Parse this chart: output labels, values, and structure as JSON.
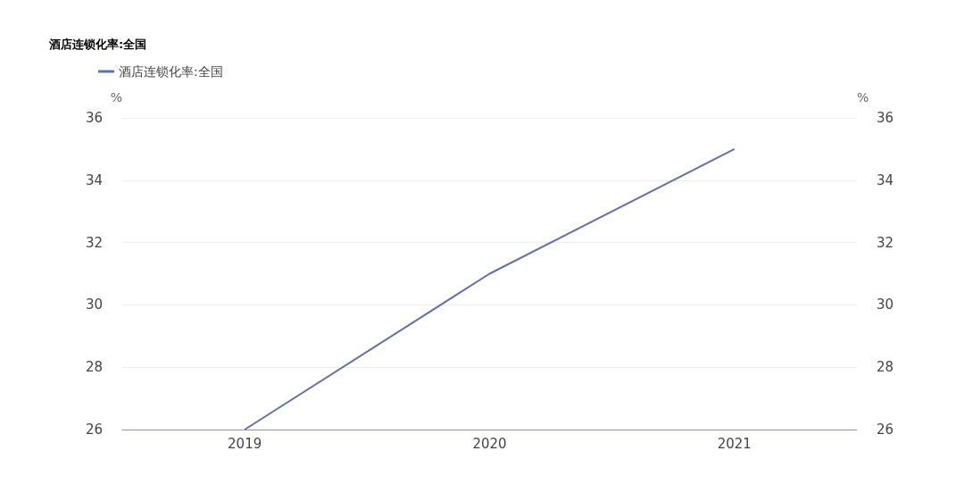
{
  "chart_data": {
    "type": "line",
    "title": "酒店连锁化率:全国",
    "categories": [
      "2019",
      "2020",
      "2021"
    ],
    "series": [
      {
        "name": "酒店连锁化率:全国",
        "color": "#6470a8",
        "values": [
          26,
          31,
          35
        ]
      }
    ],
    "ylabel": "%",
    "y2label": "%",
    "ylim": [
      26,
      36
    ],
    "yticks": [
      26,
      28,
      30,
      32,
      34,
      36
    ],
    "y2lim": [
      26,
      36
    ],
    "y2ticks": [
      26,
      28,
      30,
      32,
      34,
      36
    ],
    "grid": "y",
    "legend": "top left",
    "marker": "none"
  }
}
